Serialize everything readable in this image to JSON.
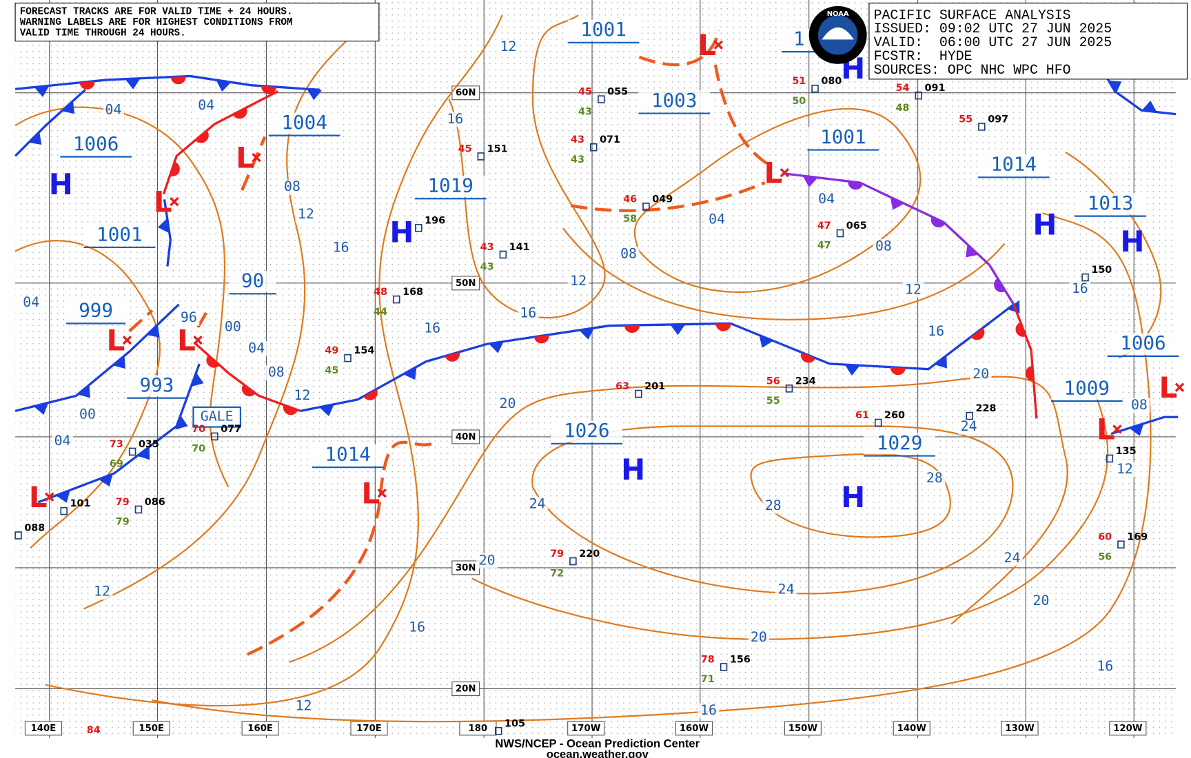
{
  "notice": [
    "FORECAST TRACKS ARE FOR VALID TIME + 24 HOURS.",
    "WARNING LABELS ARE FOR HIGHEST CONDITIONS FROM",
    "VALID TIME THROUGH 24 HOURS."
  ],
  "info": [
    "PACIFIC SURFACE ANALYSIS",
    "ISSUED: 09:02 UTC 27 JUN 2025",
    "VALID:  06:00 UTC 27 JUN 2025",
    "FCSTR:  HYDE",
    "SOURCES: OPC NHC WPC HFO"
  ],
  "logo": "NOAA",
  "lat_labels": [
    "60N",
    "50N",
    "40N",
    "30N",
    "20N"
  ],
  "lon_labels": [
    "140E",
    "150E",
    "160E",
    "170E",
    "180",
    "170W",
    "160W",
    "150W",
    "140W",
    "130W",
    "120W"
  ],
  "pressures": [
    "1001",
    "1003",
    "1004",
    "1006",
    "1019",
    "1001",
    "1014",
    "1013",
    "1001",
    "90",
    "999",
    "993",
    "1026",
    "1029",
    "1014",
    "1006",
    "1009",
    "1"
  ],
  "symbols": [
    "H",
    "H",
    "H",
    "H",
    "H",
    "H",
    "H",
    "L",
    "L",
    "L",
    "L",
    "L",
    "L",
    "L",
    "L",
    "L",
    "L"
  ],
  "warning": "GALE",
  "isobar_labels": [
    "04",
    "04",
    "08",
    "12",
    "16",
    "12",
    "16",
    "04",
    "08",
    "12",
    "16",
    "04",
    "08",
    "12",
    "16",
    "16",
    "04",
    "96",
    "00",
    "04",
    "08",
    "12",
    "00",
    "04",
    "20",
    "24",
    "20",
    "16",
    "12",
    "12",
    "16",
    "20",
    "24",
    "28",
    "28",
    "24",
    "20",
    "24",
    "20",
    "16",
    "12",
    "08",
    "16"
  ],
  "stations": [
    {
      "pressure": "055",
      "temp": "45",
      "dew": "43"
    },
    {
      "pressure": "071",
      "temp": "43",
      "dew": "43"
    },
    {
      "pressure": "080",
      "temp": "51",
      "dew": "50"
    },
    {
      "pressure": "091",
      "temp": "54",
      "dew": "48"
    },
    {
      "pressure": "097",
      "temp": "55"
    },
    {
      "pressure": "049",
      "temp": "46",
      "dew": "58"
    },
    {
      "pressure": "065",
      "temp": "47",
      "dew": "47"
    },
    {
      "pressure": "151",
      "temp": "45"
    },
    {
      "pressure": "196"
    },
    {
      "pressure": "141",
      "temp": "43",
      "dew": "43"
    },
    {
      "pressure": "168",
      "temp": "48",
      "dew": "44"
    },
    {
      "pressure": "154",
      "temp": "49",
      "dew": "45"
    },
    {
      "pressure": "201",
      "temp": "63"
    },
    {
      "pressure": "234",
      "temp": "56",
      "dew": "55"
    },
    {
      "pressure": "260",
      "temp": "61"
    },
    {
      "pressure": "228"
    },
    {
      "pressure": "035",
      "temp": "73",
      "dew": "69"
    },
    {
      "pressure": "077",
      "temp": "70",
      "dew": "70"
    },
    {
      "pressure": "101"
    },
    {
      "pressure": "086",
      "temp": "79",
      "dew": "79"
    },
    {
      "pressure": "088"
    },
    {
      "pressure": "220",
      "temp": "79",
      "dew": "72"
    },
    {
      "pressure": "169",
      "temp": "60",
      "dew": "56"
    },
    {
      "pressure": "150"
    },
    {
      "pressure": "135"
    },
    {
      "pressure": "156",
      "temp": "78",
      "dew": "71"
    },
    {
      "pressure": "105"
    },
    {
      "temp": "84"
    }
  ],
  "footer": [
    "NWS/NCEP - Ocean Prediction Center",
    "ocean.weather.gov"
  ]
}
